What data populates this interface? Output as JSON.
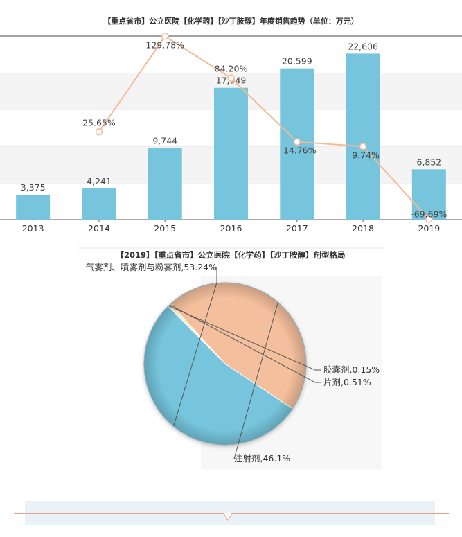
{
  "chart_data": [
    {
      "type": "bar",
      "title": "【重点省市】公立医院【化学药】【沙丁胺醇】年度销售趋势（单位：万元）",
      "categories": [
        "2013",
        "2014",
        "2015",
        "2016",
        "2017",
        "2018",
        "2019"
      ],
      "series": [
        {
          "values": [
            3375,
            4241,
            9744,
            17949,
            20599,
            22606,
            6852
          ],
          "labels": [
            "3,375",
            "4,241",
            "9,744",
            "17,949",
            "20,599",
            "22,606",
            "6,852"
          ]
        },
        {
          "type": "line",
          "values": [
            null,
            25.65,
            129.78,
            84.2,
            14.76,
            9.74,
            -69.69
          ],
          "labels": [
            "",
            "25.65%",
            "129.78%",
            "84.20%",
            "14.76%",
            "9.74%",
            "-69.69%"
          ]
        }
      ],
      "ylim": [
        0,
        25000
      ],
      "y2lim": [
        -70,
        130
      ],
      "grid": true,
      "colors": {
        "bar": "#76c5dc",
        "line": "#f4b997"
      }
    },
    {
      "type": "pie",
      "title": "【2019】【重点省市】公立医院【化学药】【沙丁胺醇】剂型格局",
      "slices": [
        {
          "label": "气雾剂、喷雾剂与粉雾剂,53.24%",
          "value": 53.24,
          "color": "#76c5dc"
        },
        {
          "label": "胶囊剂,0.15%",
          "value": 0.15,
          "color": "#d9e3a8"
        },
        {
          "label": "片剂,0.51%",
          "value": 0.51,
          "color": "#f2eca8"
        },
        {
          "label": "注射剂,46.1%",
          "value": 46.1,
          "color": "#f4bf9c"
        }
      ]
    }
  ]
}
